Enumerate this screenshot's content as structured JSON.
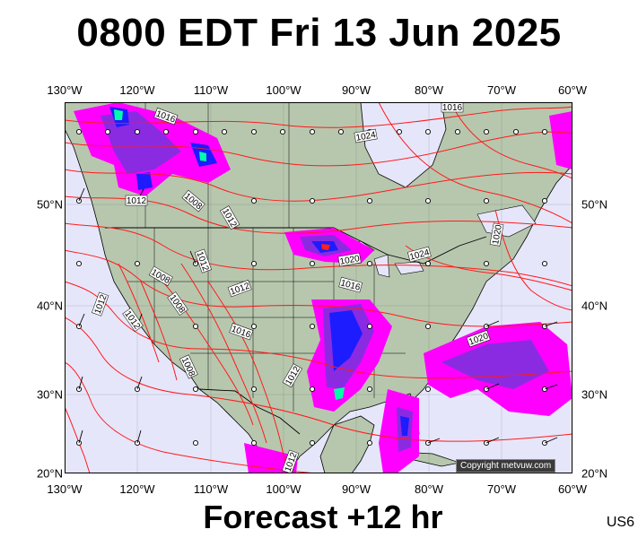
{
  "title": "0800 EDT Fri 13 Jun 2025",
  "subtitle": "Forecast +12 hr",
  "region_code": "US6",
  "copyright": "Copyright metvuw.com",
  "longitude_labels": [
    "130°W",
    "120°W",
    "110°W",
    "100°W",
    "90°W",
    "80°W",
    "70°W",
    "60°W"
  ],
  "latitude_labels": [
    "50°N",
    "40°N",
    "30°N",
    "20°N"
  ],
  "pressure_labels": [
    "1016",
    "1016",
    "1024",
    "1012",
    "1008",
    "1012",
    "1012",
    "1020",
    "1024",
    "1020",
    "1016",
    "1008",
    "1008",
    "1012",
    "1012",
    "1016",
    "1012",
    "1008",
    "1012",
    "1020",
    "1012"
  ],
  "colors": {
    "ocean": "#e6e6fb",
    "land": "#b7c7ae",
    "isobar": "#ff1a1a",
    "precip_light": "#ff00ff",
    "precip_mid": "#8a2be2",
    "precip_heavy": "#1c1cff",
    "precip_intense": "#00ffaa"
  }
}
